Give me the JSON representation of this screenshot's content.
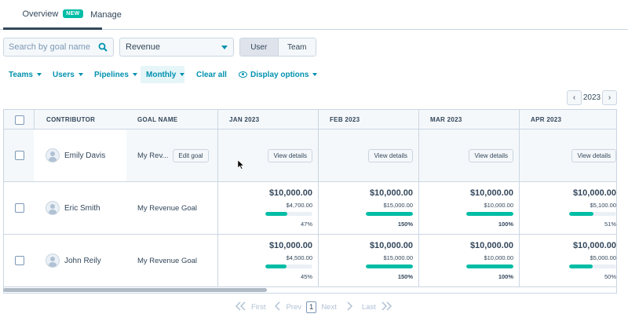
{
  "tabs": [
    {
      "label": "Overview",
      "badge": "NEW"
    },
    {
      "label": "Manage"
    }
  ],
  "search": {
    "placeholder": "Search by goal name"
  },
  "goal_type_select": {
    "value": "Revenue"
  },
  "view_toggle": {
    "user": "User",
    "team": "Team",
    "selected": "User"
  },
  "filters": {
    "teams": "Teams",
    "users": "Users",
    "pipelines": "Pipelines",
    "period": "Monthly",
    "clear": "Clear all",
    "display": "Display options"
  },
  "year_nav": {
    "year": "2023",
    "prev": "‹",
    "next": "›"
  },
  "table": {
    "headers": {
      "contributor": "CONTRIBUTOR",
      "goal_name": "GOAL NAME",
      "months": [
        "JAN 2023",
        "FEB 2023",
        "MAR 2023",
        "APR 2023"
      ]
    },
    "row_editing": {
      "contributor": "Emily Davis",
      "goal": "My Rev...",
      "edit_label": "Edit goal",
      "view_label": "View details"
    },
    "rows": [
      {
        "contributor": "Eric Smith",
        "goal": "My Revenue Goal",
        "months": [
          {
            "target": "$10,000.00",
            "actual": "$4,700.00",
            "pct": "47%",
            "progress": 0.47
          },
          {
            "target": "$10,000.00",
            "actual": "$15,000.00",
            "pct": "150%",
            "progress": 1.0
          },
          {
            "target": "$10,000.00",
            "actual": "$10,000.00",
            "pct": "100%",
            "progress": 1.0
          },
          {
            "target": "$10,000.00",
            "actual": "$5,100.00",
            "pct": "51%",
            "progress": 0.51
          }
        ]
      },
      {
        "contributor": "John Reily",
        "goal": "My Revenue Goal",
        "months": [
          {
            "target": "$10,000.00",
            "actual": "$4,500.00",
            "pct": "45%",
            "progress": 0.45
          },
          {
            "target": "$10,000.00",
            "actual": "$15,000.00",
            "pct": "150%",
            "progress": 1.0
          },
          {
            "target": "$10,000.00",
            "actual": "$10,000.00",
            "pct": "100%",
            "progress": 1.0
          },
          {
            "target": "$10,000.00",
            "actual": "$5,000.00",
            "pct": "50%",
            "progress": 0.5
          }
        ]
      }
    ]
  },
  "pagination": {
    "first": "First",
    "prev": "Prev",
    "current": "1",
    "next": "Next",
    "last": "Last"
  },
  "colors": {
    "accent": "#0091ae",
    "progress": "#00bda5",
    "badge": "#00bda5"
  }
}
